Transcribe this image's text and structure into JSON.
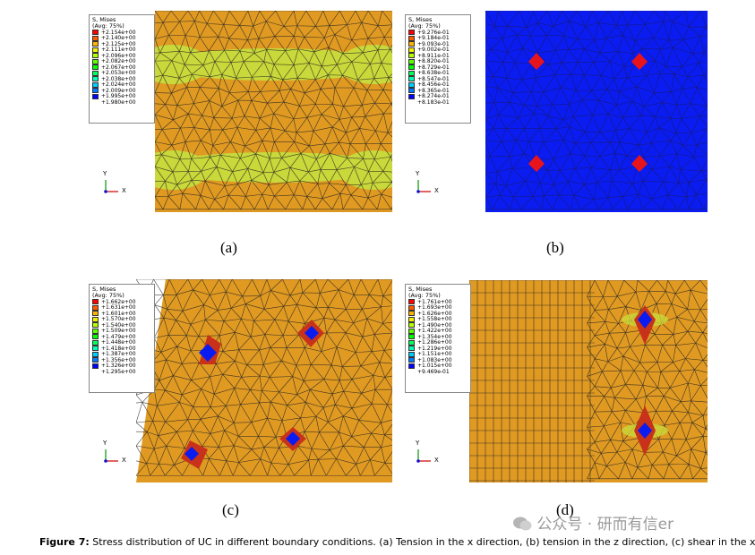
{
  "legend_title": "S, Mises",
  "legend_avg": "(Avg: 75%)",
  "panels": {
    "a": {
      "label": "(a)",
      "values": [
        "+2.154e+00",
        "+2.140e+00",
        "+2.125e+00",
        "+2.111e+00",
        "+2.096e+00",
        "+2.082e+00",
        "+2.067e+00",
        "+2.053e+00",
        "+2.038e+00",
        "+2.024e+00",
        "+2.009e+00",
        "+1.995e+00",
        "+1.980e+00"
      ]
    },
    "b": {
      "label": "(b)",
      "values": [
        "+9.276e-01",
        "+9.184e-01",
        "+9.093e-01",
        "+9.002e-01",
        "+8.911e-01",
        "+8.820e-01",
        "+8.729e-01",
        "+8.638e-01",
        "+8.547e-01",
        "+8.456e-01",
        "+8.365e-01",
        "+8.274e-01",
        "+8.183e-01"
      ]
    },
    "c": {
      "label": "(c)",
      "values": [
        "+1.662e+00",
        "+1.631e+00",
        "+1.601e+00",
        "+1.570e+00",
        "+1.540e+00",
        "+1.509e+00",
        "+1.479e+00",
        "+1.448e+00",
        "+1.418e+00",
        "+1.387e+00",
        "+1.356e+00",
        "+1.326e+00",
        "+1.295e+00"
      ]
    },
    "d": {
      "label": "(d)",
      "values": [
        "+1.761e+00",
        "+1.693e+00",
        "+1.626e+00",
        "+1.558e+00",
        "+1.490e+00",
        "+1.422e+00",
        "+1.354e+00",
        "+1.286e+00",
        "+1.219e+00",
        "+1.151e+00",
        "+1.083e+00",
        "+1.015e+00",
        "+9.469e-01"
      ]
    }
  },
  "legend_colors": [
    "#ff0000",
    "#ff5a00",
    "#ffb400",
    "#f0f000",
    "#b4ff00",
    "#5aff00",
    "#00ff00",
    "#00ff5a",
    "#00ffb4",
    "#00ccff",
    "#0078ff",
    "#0000ff"
  ],
  "triad": {
    "y": "Y",
    "x": "X",
    "z": "Z"
  },
  "caption": {
    "bold": "Figure 7:",
    "text": " Stress distribution of UC in different boundary conditions. (a) Tension in the x direction, (b) tension in the z direction, (c) shear in the xy"
  },
  "watermark": "公众号 · 研而有信er"
}
